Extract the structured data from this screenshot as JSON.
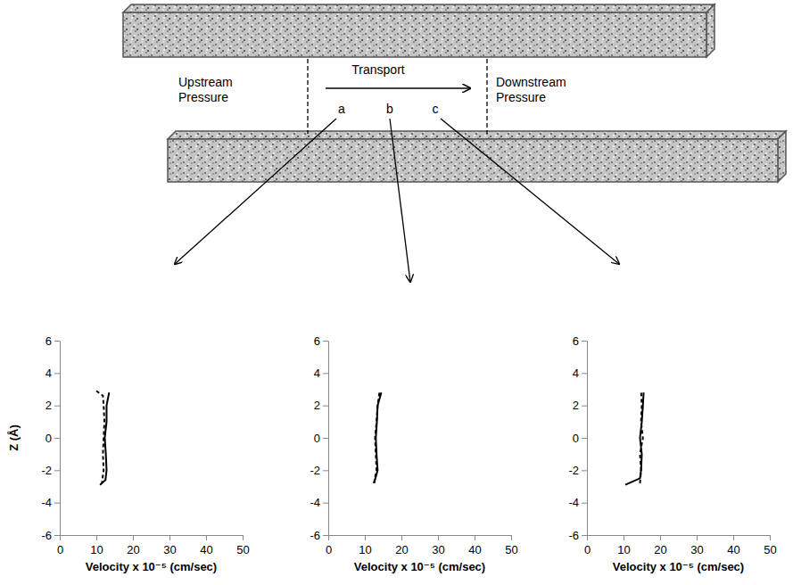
{
  "diagram": {
    "left_label": "Upstream Pressure",
    "center_label": "Transport",
    "right_label": "Downstream Pressure",
    "points": [
      "a",
      "b",
      "c"
    ]
  },
  "chart_data": [
    {
      "type": "line",
      "xlabel": "Velocity x 10⁻⁵ (cm/sec)",
      "ylabel": "Z (Å)",
      "xlim": [
        0,
        50
      ],
      "xticks": [
        0,
        10,
        20,
        30,
        40,
        50
      ],
      "ylim": [
        -6,
        6
      ],
      "yticks": [
        -6,
        -4,
        -2,
        0,
        2,
        4,
        6
      ],
      "grid": false,
      "series": [
        {
          "color": "#000000",
          "line_style": "solid",
          "x": [
            11,
            12.5,
            12.8,
            12.6,
            12.3,
            12.8,
            12.8,
            13.5
          ],
          "values": [
            -2.9,
            -2.6,
            -2,
            -1,
            0,
            1,
            2,
            2.8
          ]
        },
        {
          "color": "#000000",
          "line_style": "dashed",
          "x": [
            10,
            11.8,
            12,
            12.2,
            12,
            11.8,
            12,
            11.5
          ],
          "values": [
            2.9,
            2.6,
            2,
            1,
            0,
            -1,
            -2,
            -2.8
          ]
        }
      ]
    },
    {
      "type": "line",
      "xlabel": "Velocity x 10⁻⁵ (cm/sec)",
      "xlim": [
        0,
        50
      ],
      "xticks": [
        0,
        10,
        20,
        30,
        40,
        50
      ],
      "ylim": [
        -6,
        6
      ],
      "yticks": [
        -6,
        -4,
        -2,
        0,
        2,
        4,
        6
      ],
      "grid": false,
      "series": [
        {
          "color": "#000000",
          "line_style": "solid",
          "x": [
            12.5,
            13.5,
            13.2,
            13,
            13.3,
            13.5,
            14.5
          ],
          "values": [
            -2.8,
            -2,
            -1,
            0,
            1,
            2,
            2.8
          ]
        },
        {
          "color": "#000000",
          "line_style": "dashed",
          "x": [
            12.5,
            13.2,
            13,
            12.8,
            13.2,
            13.5,
            14
          ],
          "values": [
            -2.8,
            -2,
            -1,
            0,
            1,
            2,
            2.8
          ]
        }
      ]
    },
    {
      "type": "line",
      "xlabel": "Velocity x 10⁻⁵ (cm/sec)",
      "xlim": [
        0,
        50
      ],
      "xticks": [
        0,
        10,
        20,
        30,
        40,
        50
      ],
      "ylim": [
        -6,
        6
      ],
      "yticks": [
        -6,
        -4,
        -2,
        0,
        2,
        4,
        6
      ],
      "grid": false,
      "series": [
        {
          "color": "#000000",
          "line_style": "solid",
          "x": [
            10.5,
            14.5,
            14.8,
            15,
            14.5,
            15,
            15.3,
            15.5
          ],
          "values": [
            -2.9,
            -2.5,
            -2,
            -1,
            0,
            1,
            2,
            2.8
          ]
        },
        {
          "color": "#000000",
          "line_style": "dashed",
          "x": [
            14.5,
            14.8,
            14.5,
            15.3,
            14.8,
            15,
            14.8
          ],
          "values": [
            -2.8,
            -2,
            -1,
            0,
            1,
            2,
            2.9
          ]
        }
      ]
    }
  ]
}
